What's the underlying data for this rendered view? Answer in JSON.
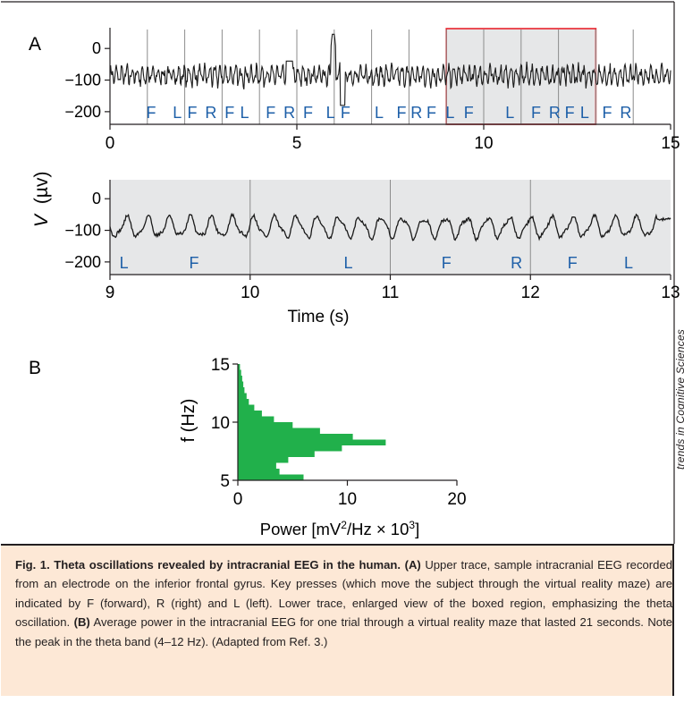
{
  "panel_a": {
    "label": "A",
    "y_axis_label": "V (µv)",
    "y_axis_symbol": "V",
    "y_axis_unit": "(µv)",
    "upper_y_ticks": [
      "0",
      "−100",
      "−200"
    ],
    "upper_x_ticks": [
      "0",
      "5",
      "10",
      "15"
    ],
    "lower_y_ticks": [
      "0",
      "−100",
      "−200"
    ],
    "lower_x_ticks": [
      "9",
      "10",
      "11",
      "12",
      "13"
    ],
    "x_axis_label": "Time (s)"
  },
  "panel_b": {
    "label": "B"
  },
  "side_credit": "trends in Cognitive Sciences",
  "caption": {
    "title": "Fig. 1. Theta oscillations revealed by intracranial EEG in the human.",
    "a_label": "(A)",
    "a_text": " Upper trace, sample intracranial EEG recorded from an electrode on the inferior frontal gyrus. Key presses (which move the subject through the virtual reality maze) are indicated by F (forward), R (right) and L (left). Lower trace, enlarged view of the boxed region, emphasizing the theta oscillation. ",
    "b_label": "(B)",
    "b_text": " Average power in the intracranial EEG for one trial through a virtual reality maze that lasted 21 seconds. Note the peak in the theta band (4–12 Hz). (Adapted from Ref. 3.)"
  },
  "colors": {
    "trace": "#1a1a1a",
    "key_letters": "#1d5fa8",
    "boxed_region_border": "#e8242c",
    "shaded_region": "#e6e7e8",
    "power_fill": "#21b04b",
    "caption_background": "#fde8d6"
  },
  "chart_data": [
    {
      "type": "line",
      "title": "",
      "xlim": [
        0,
        15
      ],
      "ylim": [
        -240,
        60
      ],
      "x_ticks": [
        0,
        5,
        10,
        15
      ],
      "y_ticks": [
        0,
        -100,
        -200
      ],
      "ylabel": "V (µv)",
      "boxed_region": [
        9,
        13
      ],
      "key_presses": [
        {
          "t": 1.1,
          "key": "F"
        },
        {
          "t": 1.8,
          "key": "L"
        },
        {
          "t": 2.2,
          "key": "F"
        },
        {
          "t": 2.7,
          "key": "R"
        },
        {
          "t": 3.2,
          "key": "F"
        },
        {
          "t": 3.6,
          "key": "L"
        },
        {
          "t": 4.3,
          "key": "F"
        },
        {
          "t": 4.8,
          "key": "R"
        },
        {
          "t": 5.3,
          "key": "F"
        },
        {
          "t": 5.9,
          "key": "L"
        },
        {
          "t": 6.3,
          "key": "F"
        },
        {
          "t": 7.2,
          "key": "L"
        },
        {
          "t": 7.8,
          "key": "F"
        },
        {
          "t": 8.2,
          "key": "R"
        },
        {
          "t": 8.6,
          "key": "F"
        },
        {
          "t": 9.1,
          "key": "L"
        },
        {
          "t": 9.6,
          "key": "F"
        },
        {
          "t": 10.7,
          "key": "L"
        },
        {
          "t": 11.4,
          "key": "F"
        },
        {
          "t": 11.9,
          "key": "R"
        },
        {
          "t": 12.3,
          "key": "F"
        },
        {
          "t": 12.7,
          "key": "L"
        },
        {
          "t": 13.3,
          "key": "F"
        },
        {
          "t": 13.8,
          "key": "R"
        }
      ],
      "key_press_marks_s": [
        1,
        2,
        3,
        4,
        5,
        6,
        7,
        8,
        9,
        10,
        11,
        12,
        13,
        14
      ]
    },
    {
      "type": "line",
      "title": "",
      "xlim": [
        9,
        13
      ],
      "ylim": [
        -240,
        60
      ],
      "x_ticks": [
        9,
        10,
        11,
        12,
        13
      ],
      "y_ticks": [
        0,
        -100,
        -200
      ],
      "xlabel": "Time (s)",
      "key_presses": [
        {
          "t": 9.1,
          "key": "L"
        },
        {
          "t": 9.6,
          "key": "F"
        },
        {
          "t": 10.7,
          "key": "L"
        },
        {
          "t": 11.4,
          "key": "F"
        },
        {
          "t": 11.9,
          "key": "R"
        },
        {
          "t": 12.3,
          "key": "F"
        },
        {
          "t": 12.7,
          "key": "L"
        }
      ],
      "key_press_marks_s": [
        10,
        11,
        12
      ]
    },
    {
      "type": "area",
      "title": "",
      "xlabel": "Power [mV²/Hz × 10³]",
      "xlabel_parts": [
        "Power [mV",
        "2",
        "/Hz × 10",
        "3",
        "]"
      ],
      "ylabel": "f (Hz)",
      "xlim": [
        0,
        20
      ],
      "ylim": [
        5,
        15
      ],
      "x_ticks": [
        0,
        10,
        20
      ],
      "y_ticks": [
        5,
        10,
        15
      ],
      "f": [
        5.0,
        5.5,
        6.0,
        6.5,
        7.0,
        7.5,
        8.0,
        8.5,
        9.0,
        9.5,
        10.0,
        10.5,
        11.0,
        11.5,
        12.0,
        12.5,
        13.0,
        13.5,
        14.0,
        14.5,
        15.0
      ],
      "power": [
        6.0,
        3.8,
        3.5,
        4.6,
        7.0,
        9.5,
        13.5,
        10.5,
        7.5,
        5.0,
        3.3,
        2.2,
        1.5,
        1.0,
        0.8,
        0.6,
        0.5,
        0.4,
        0.3,
        0.2,
        0.1
      ]
    }
  ]
}
